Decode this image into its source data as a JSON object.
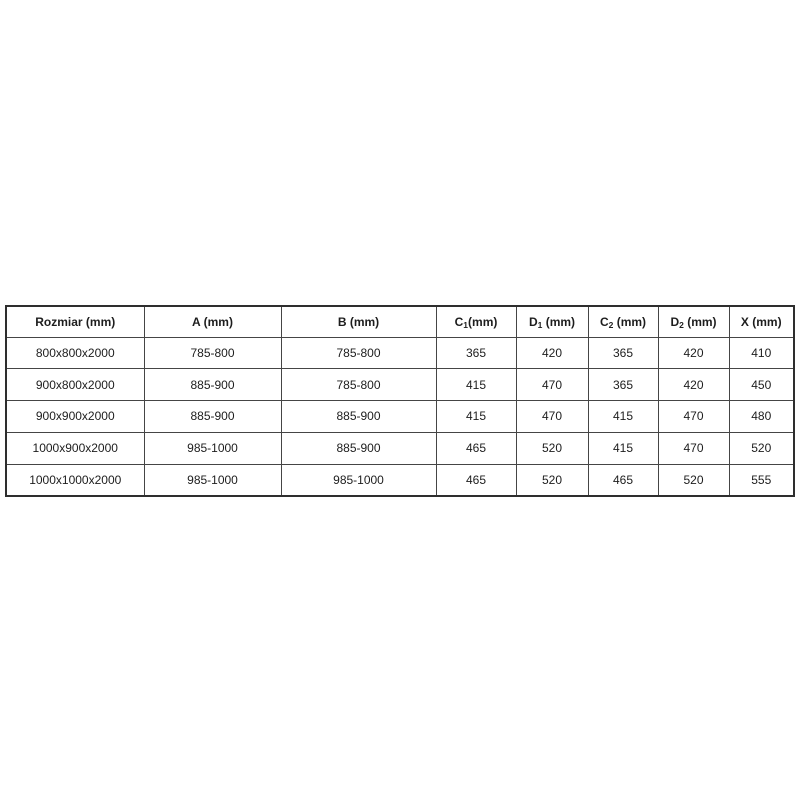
{
  "page": {
    "background_color": "#ffffff"
  },
  "table": {
    "border_color": "#454545",
    "outer_border_color": "#2e2e2e",
    "text_color": "#1d1d1d",
    "headers": [
      {
        "pre": "Rozmiar (mm)",
        "sub": "",
        "post": ""
      },
      {
        "pre": "A (mm)",
        "sub": "",
        "post": ""
      },
      {
        "pre": "B (mm)",
        "sub": "",
        "post": ""
      },
      {
        "pre": "C",
        "sub": "1",
        "post": "(mm)"
      },
      {
        "pre": "D",
        "sub": "1",
        "post": " (mm)"
      },
      {
        "pre": "C",
        "sub": "2",
        "post": " (mm)"
      },
      {
        "pre": "D",
        "sub": "2",
        "post": " (mm)"
      },
      {
        "pre": "X (mm)",
        "sub": "",
        "post": ""
      }
    ],
    "rows": [
      [
        "800x800x2000",
        "785-800",
        "785-800",
        "365",
        "420",
        "365",
        "420",
        "410"
      ],
      [
        "900x800x2000",
        "885-900",
        "785-800",
        "415",
        "470",
        "365",
        "420",
        "450"
      ],
      [
        "900x900x2000",
        "885-900",
        "885-900",
        "415",
        "470",
        "415",
        "470",
        "480"
      ],
      [
        "1000x900x2000",
        "985-1000",
        "885-900",
        "465",
        "520",
        "415",
        "470",
        "520"
      ],
      [
        "1000x1000x2000",
        "985-1000",
        "985-1000",
        "465",
        "520",
        "465",
        "520",
        "555"
      ]
    ]
  }
}
